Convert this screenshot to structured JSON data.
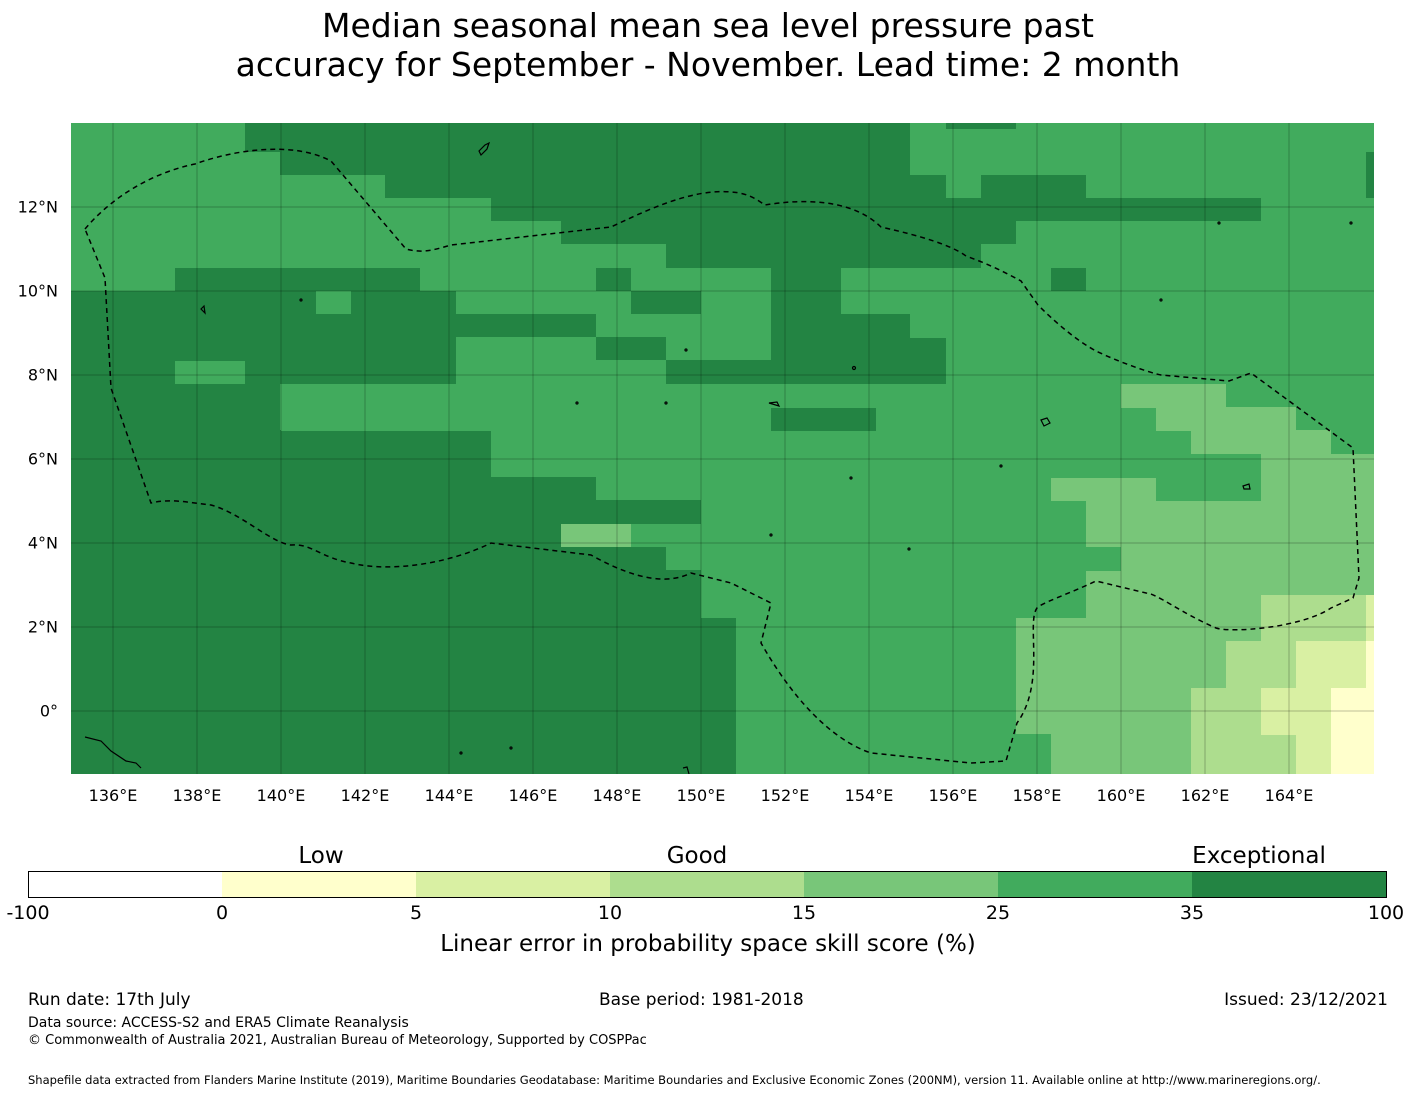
{
  "title": {
    "line1": "Median seasonal mean sea level pressure past",
    "line2": "accuracy for September - November. Lead time: 2 month"
  },
  "map": {
    "x_ticks": [
      "136°E",
      "138°E",
      "140°E",
      "142°E",
      "144°E",
      "146°E",
      "148°E",
      "150°E",
      "152°E",
      "154°E",
      "156°E",
      "158°E",
      "160°E",
      "162°E",
      "164°E"
    ],
    "y_ticks": [
      "12°N",
      "10°N",
      "8°N",
      "6°N",
      "4°N",
      "2°N",
      "0°"
    ],
    "x_range_deg": [
      135.0,
      166.0
    ],
    "y_range_deg": [
      -1.5,
      14.0
    ],
    "grid": true,
    "boundary_style": "dashed black EEZ outline",
    "class_colors": {
      "0-5": "#ffffcc",
      "5-10": "#d9f0a3",
      "10-15": "#addd8e",
      "15-25": "#78c679",
      "25-35": "#41ab5d",
      "35-100": "#238443"
    }
  },
  "colorbar": {
    "categories": [
      "Low",
      "Good",
      "Exceptional"
    ],
    "ticks": [
      "-100",
      "0",
      "5",
      "10",
      "15",
      "25",
      "35",
      "100"
    ],
    "colors": [
      "#ffffff",
      "#ffffcc",
      "#d9f0a3",
      "#addd8e",
      "#78c679",
      "#41ab5d",
      "#238443"
    ],
    "label": "Linear error in probability space skill score (%)"
  },
  "footer": {
    "run_date": "Run date: 17th July",
    "base_period": "Base period: 1981-2018",
    "issued": "Issued: 23/12/2021",
    "data_source": "Data source: ACCESS-S2 and ERA5 Climate Reanalysis",
    "copyright": "© Commonwealth of Australia 2021, Australian Bureau of Meteorology, Supported by COSPPac",
    "shapefile": "Shapefile data extracted from Flanders Marine Institute (2019), Maritime Boundaries Geodatabase: Maritime Boundaries and Exclusive Economic Zones (200NM), version 11. Available online at http://www.marineregions.org/."
  }
}
